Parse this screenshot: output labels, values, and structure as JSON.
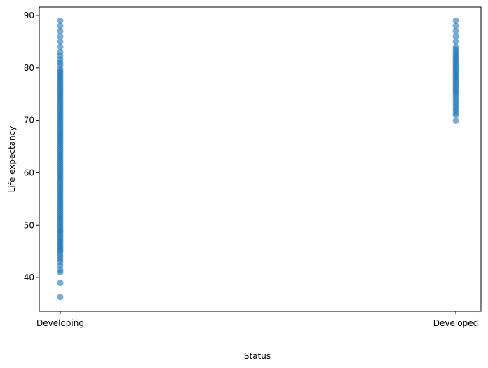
{
  "chart_data": {
    "type": "scatter",
    "title": "",
    "xlabel": "Status",
    "ylabel": "Life expectancy",
    "categories": [
      "Developing",
      "Developed"
    ],
    "ylim": [
      33.6,
      91.6
    ],
    "yticks": [
      40,
      50,
      60,
      70,
      80,
      90
    ],
    "grid": false,
    "color": "#1f77b4",
    "alpha": 0.6,
    "series": [
      {
        "category": "Developing",
        "y": [
          36.3,
          39.0,
          41.0,
          41.5,
          42.3,
          43.0,
          43.5,
          44.0,
          44.5,
          45.0,
          45.3,
          45.7,
          46.0,
          46.4,
          46.8,
          47.1,
          47.5,
          47.9,
          48.3,
          48.7,
          49.0,
          49.4,
          49.8,
          50.2,
          50.6,
          51.0,
          51.4,
          51.8,
          52.2,
          52.6,
          53.0,
          53.4,
          53.8,
          54.2,
          54.6,
          55.0,
          55.4,
          55.8,
          56.2,
          56.6,
          57.0,
          57.4,
          57.8,
          58.2,
          58.6,
          59.0,
          59.4,
          59.8,
          60.2,
          60.6,
          61.0,
          61.4,
          61.8,
          62.2,
          62.6,
          63.0,
          63.4,
          63.8,
          64.2,
          64.6,
          65.0,
          65.4,
          65.8,
          66.2,
          66.6,
          67.0,
          67.4,
          67.8,
          68.2,
          68.6,
          69.0,
          69.4,
          69.8,
          70.2,
          70.6,
          71.0,
          71.4,
          71.8,
          72.2,
          72.6,
          73.0,
          73.4,
          73.8,
          74.2,
          74.6,
          75.0,
          75.4,
          75.8,
          76.2,
          76.6,
          77.0,
          77.4,
          77.8,
          78.2,
          78.6,
          79.0,
          79.4,
          79.8,
          80.5,
          81.0,
          81.6,
          82.3,
          83.0,
          84.0,
          85.0,
          86.0,
          87.0,
          88.0,
          89.0
        ]
      },
      {
        "category": "Developed",
        "y": [
          69.9,
          71.0,
          71.5,
          72.0,
          72.5,
          73.0,
          73.5,
          74.0,
          74.5,
          75.0,
          75.4,
          75.8,
          76.2,
          76.6,
          77.0,
          77.4,
          77.8,
          78.2,
          78.6,
          79.0,
          79.4,
          79.8,
          80.2,
          80.6,
          81.0,
          81.4,
          81.8,
          82.2,
          82.6,
          83.0,
          83.5,
          84.0,
          85.0,
          86.0,
          87.0,
          88.0,
          89.0
        ]
      }
    ]
  }
}
